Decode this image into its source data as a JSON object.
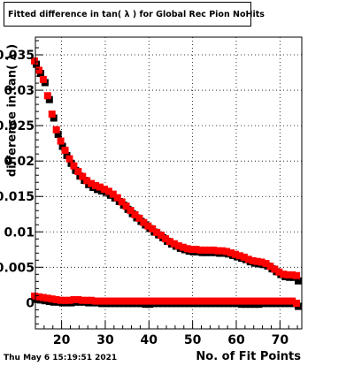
{
  "header": {
    "title": "Fitted difference in tan( λ ) for Global Rec Pion NoHits",
    "timestamp": "Thu May  6 15:19:51 2021"
  },
  "chart_data": {
    "type": "scatter",
    "title": "Fitted difference in tan( λ ) for Global Rec Pion NoHits",
    "xlabel": "No. of Fit Points",
    "ylabel": "difference in tan( λ )",
    "xlim": [
      14,
      75
    ],
    "ylim": [
      -0.0037,
      0.0375
    ],
    "grid": true,
    "x_ticks": [
      20,
      30,
      40,
      50,
      60,
      70
    ],
    "y_ticks": [
      0,
      0.005,
      0.01,
      0.015,
      0.02,
      0.025,
      0.03,
      0.035
    ],
    "y_tick_labels": [
      "0",
      "0.005",
      "0.01",
      "0.015",
      "0.02",
      "0.025",
      "0.03",
      "0.035"
    ],
    "colors": {
      "red": "#ff0000",
      "black": "#000000"
    },
    "series": [
      {
        "marker": "black-square",
        "x": [
          14,
          15,
          16,
          17,
          18,
          19,
          20,
          21,
          22,
          23,
          24,
          25,
          26,
          27,
          28,
          29,
          30,
          31,
          32,
          33,
          34,
          35,
          36,
          37,
          38,
          39,
          40,
          41,
          42,
          43,
          44,
          45,
          46,
          47,
          48,
          49,
          50,
          51,
          52,
          53,
          54,
          55,
          56,
          57,
          58,
          59,
          60,
          61,
          62,
          63,
          64,
          65,
          66,
          67,
          68,
          69,
          70,
          71,
          72,
          73,
          74
        ],
        "y": [
          0.0338,
          0.0325,
          0.0312,
          0.0288,
          0.0262,
          0.0239,
          0.0222,
          0.0209,
          0.0198,
          0.0188,
          0.018,
          0.0174,
          0.0168,
          0.0164,
          0.0161,
          0.0159,
          0.0157,
          0.0153,
          0.0149,
          0.0144,
          0.0139,
          0.0133,
          0.0127,
          0.0121,
          0.0116,
          0.0111,
          0.0106,
          0.0101,
          0.0097,
          0.0093,
          0.0088,
          0.0084,
          0.0081,
          0.0078,
          0.0076,
          0.0074,
          0.0073,
          0.0073,
          0.0072,
          0.0072,
          0.0072,
          0.0072,
          0.0071,
          0.0071,
          0.007,
          0.0068,
          0.0066,
          0.0064,
          0.0062,
          0.0059,
          0.0057,
          0.0056,
          0.0055,
          0.0053,
          0.0049,
          0.0045,
          0.0041,
          0.0038,
          0.0037,
          0.0037,
          0.0032
        ]
      },
      {
        "marker": "red-square",
        "x": [
          14,
          15,
          16,
          17,
          18,
          19,
          20,
          21,
          22,
          23,
          24,
          25,
          26,
          27,
          28,
          29,
          30,
          31,
          32,
          33,
          34,
          35,
          36,
          37,
          38,
          39,
          40,
          41,
          42,
          43,
          44,
          45,
          46,
          47,
          48,
          49,
          50,
          51,
          52,
          53,
          54,
          55,
          56,
          57,
          58,
          59,
          60,
          61,
          62,
          63,
          64,
          65,
          66,
          67,
          68,
          69,
          70,
          71,
          72,
          73,
          74
        ],
        "y": [
          0.034,
          0.0327,
          0.0314,
          0.0291,
          0.0265,
          0.0243,
          0.0227,
          0.0214,
          0.0202,
          0.0192,
          0.0184,
          0.0177,
          0.0171,
          0.0167,
          0.0164,
          0.0162,
          0.0159,
          0.0156,
          0.0152,
          0.0147,
          0.0141,
          0.0135,
          0.0129,
          0.0123,
          0.0118,
          0.0112,
          0.0107,
          0.0103,
          0.0098,
          0.0094,
          0.0089,
          0.0085,
          0.0082,
          0.0079,
          0.0077,
          0.0075,
          0.0074,
          0.0074,
          0.0073,
          0.0073,
          0.0073,
          0.0073,
          0.0072,
          0.0072,
          0.0071,
          0.0069,
          0.0067,
          0.0065,
          0.0063,
          0.006,
          0.0058,
          0.0057,
          0.0056,
          0.0054,
          0.005,
          0.0046,
          0.0042,
          0.0039,
          0.0038,
          0.0038,
          0.0037
        ]
      },
      {
        "marker": "black-square",
        "x": [
          14,
          15,
          16,
          17,
          18,
          19,
          20,
          21,
          22,
          23,
          24,
          25,
          26,
          27,
          28,
          29,
          30,
          31,
          32,
          33,
          34,
          35,
          36,
          37,
          38,
          39,
          40,
          41,
          42,
          43,
          44,
          45,
          46,
          47,
          48,
          49,
          50,
          51,
          52,
          53,
          54,
          55,
          56,
          57,
          58,
          59,
          60,
          61,
          62,
          63,
          64,
          65,
          66,
          67,
          68,
          69,
          70,
          71,
          72,
          73,
          74
        ],
        "y": [
          0.0006,
          0.0005,
          0.0004,
          0.0003,
          0.0002,
          0.0002,
          0.0001,
          0.0001,
          0.0001,
          0.0002,
          0.0002,
          0.0002,
          0.0001,
          0.0001,
          0.0001,
          0.0,
          0.0,
          0.0,
          0.0,
          0.0,
          0.0,
          0.0,
          0.0,
          0.0,
          0.0,
          -0.0001,
          -0.0001,
          0.0,
          0.0,
          0.0,
          0.0,
          0.0,
          0.0,
          0.0,
          0.0,
          0.0,
          0.0,
          0.0,
          0.0,
          0.0,
          0.0,
          0.0,
          0.0,
          0.0,
          0.0,
          0.0,
          0.0,
          -0.0001,
          -0.0001,
          -0.0001,
          -0.0001,
          -0.0001,
          0.0,
          0.0,
          0.0,
          0.0,
          0.0,
          0.0,
          0.0,
          0.0,
          -0.0004
        ]
      },
      {
        "marker": "red-square",
        "x": [
          14,
          15,
          16,
          17,
          18,
          19,
          20,
          21,
          22,
          23,
          24,
          25,
          26,
          27,
          28,
          29,
          30,
          31,
          32,
          33,
          34,
          35,
          36,
          37,
          38,
          39,
          40,
          41,
          42,
          43,
          44,
          45,
          46,
          47,
          48,
          49,
          50,
          51,
          52,
          53,
          54,
          55,
          56,
          57,
          58,
          59,
          60,
          61,
          62,
          63,
          64,
          65,
          66,
          67,
          68,
          69,
          70,
          71,
          72,
          73,
          74
        ],
        "y": [
          0.0008,
          0.0007,
          0.0006,
          0.0005,
          0.0004,
          0.0003,
          0.0002,
          0.0002,
          0.0002,
          0.0003,
          0.0003,
          0.0002,
          0.0002,
          0.0002,
          0.0001,
          0.0001,
          0.0001,
          0.0001,
          0.0001,
          0.0001,
          0.0001,
          0.0001,
          0.0001,
          0.0001,
          0.0001,
          0.0001,
          0.0001,
          0.0001,
          0.0001,
          0.0001,
          0.0001,
          0.0001,
          0.0001,
          0.0001,
          0.0001,
          0.0001,
          0.0001,
          0.0001,
          0.0001,
          0.0001,
          0.0001,
          0.0001,
          0.0001,
          0.0001,
          0.0001,
          0.0001,
          0.0001,
          0.0001,
          0.0001,
          0.0001,
          0.0001,
          0.0001,
          0.0001,
          0.0001,
          0.0001,
          0.0001,
          0.0001,
          0.0001,
          0.0001,
          0.0001,
          -0.0002
        ]
      }
    ]
  }
}
